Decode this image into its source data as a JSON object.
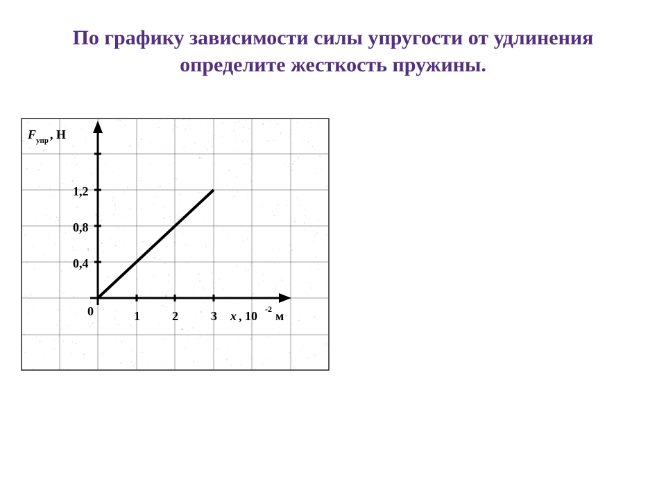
{
  "title": {
    "text": "По графику зависимости силы упругости от удлинения определите жесткость пружины.",
    "color": "#52307c",
    "fontsize": 30
  },
  "chart": {
    "type": "line",
    "background_color": "#ffffff",
    "grid_color": "#555555",
    "border_color": "#222222",
    "y_axis_label": "F_упр, Н",
    "x_axis_label": "x, 10⁻² м",
    "origin_label": "0",
    "xlim": [
      0,
      4
    ],
    "ylim": [
      0,
      1.6
    ],
    "x_ticks": [
      1,
      2,
      3
    ],
    "x_tick_labels": [
      "1",
      "2",
      "3"
    ],
    "y_ticks": [
      0.4,
      0.8,
      1.2
    ],
    "y_tick_labels": [
      "0,4",
      "0,8",
      "1,2"
    ],
    "line_points_x": [
      0,
      3
    ],
    "line_points_y": [
      0,
      1.2
    ],
    "line_color": "#000000",
    "line_width": 4,
    "axis_color": "#000000",
    "axis_width": 3,
    "tick_fontsize": 18,
    "axis_label_fontsize": 18,
    "grid_major_cells_x": 8,
    "grid_major_cells_y": 7,
    "noise_texture": true
  }
}
